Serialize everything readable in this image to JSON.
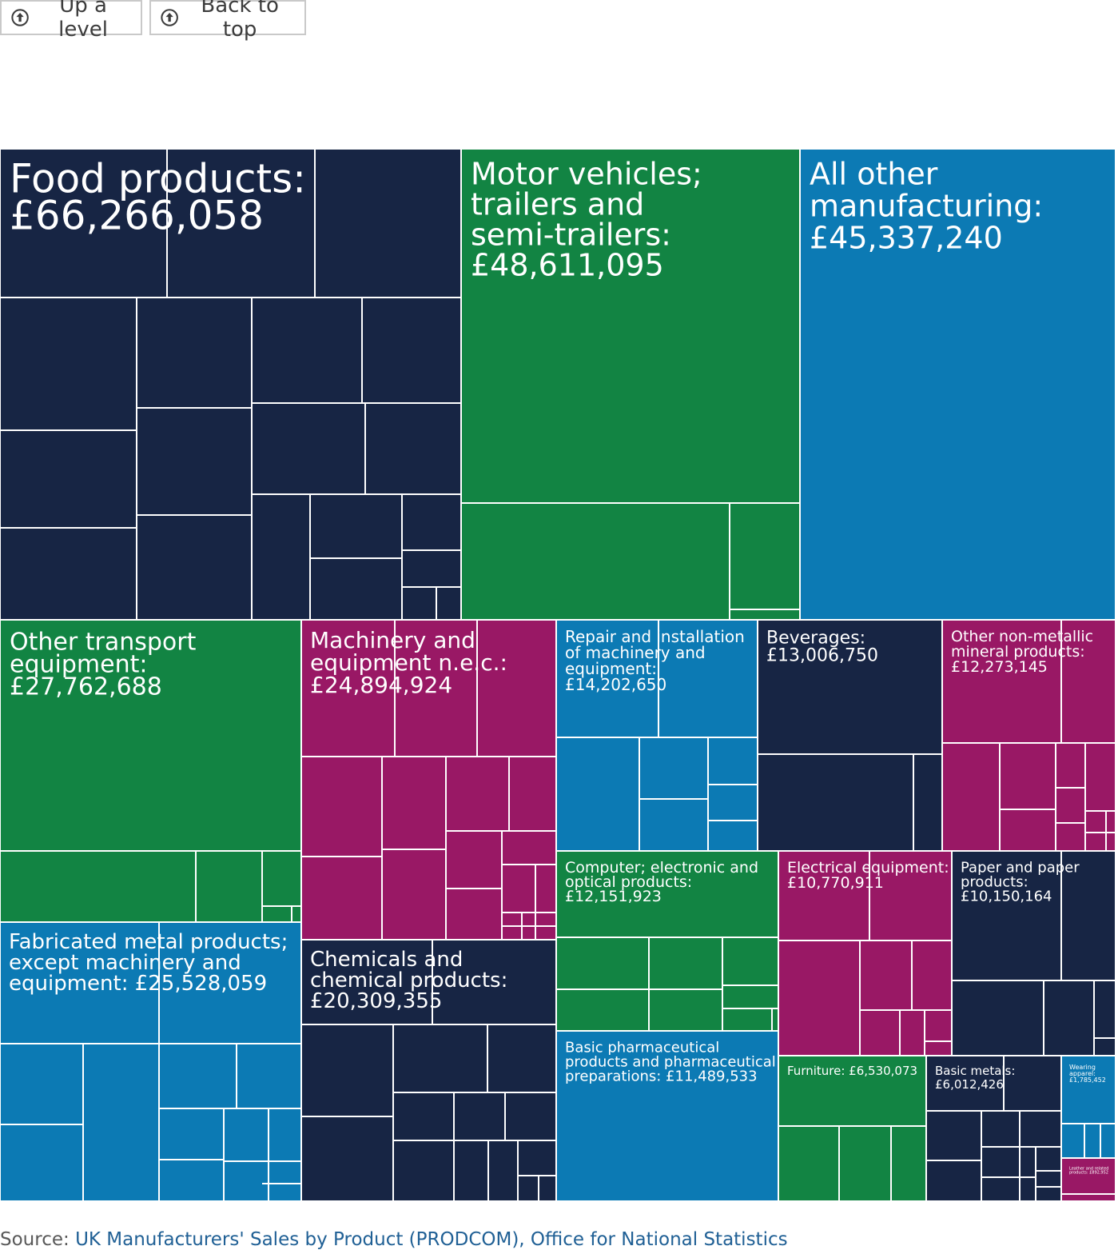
{
  "nav": {
    "up_label": "Up a level",
    "top_label": "Back to top"
  },
  "source": {
    "prefix": "Source: ",
    "link_text": "UK Manufacturers' Sales by Product (PRODCOM), Office for National Statistics"
  },
  "colors": {
    "navy": "#172544",
    "green": "#128443",
    "blue": "#0c7ab4",
    "purple": "#991865"
  },
  "chart_data": {
    "type": "treemap",
    "unit": "£",
    "items": [
      {
        "label": "Food products:",
        "value_text": "£66,266,058",
        "value": 66266058,
        "color": "navy"
      },
      {
        "label": "Motor vehicles; trailers and semi-trailers:",
        "value_text": "£48,611,095",
        "value": 48611095,
        "color": "green"
      },
      {
        "label": "All other manufacturing:",
        "value_text": "£45,337,240",
        "value": 45337240,
        "color": "blue"
      },
      {
        "label": "Other transport equipment:",
        "value_text": "£27,762,688",
        "value": 27762688,
        "color": "green"
      },
      {
        "label": "Fabricated metal products; except machinery and equipment:",
        "value_text": "£25,528,059",
        "value": 25528059,
        "color": "blue"
      },
      {
        "label": "Machinery and equipment n.e.c.:",
        "value_text": "£24,894,924",
        "value": 24894924,
        "color": "purple"
      },
      {
        "label": "Chemicals and chemical products:",
        "value_text": "£20,309,355",
        "value": 20309355,
        "color": "navy"
      },
      {
        "label": "Repair and installation of machinery and equipment:",
        "value_text": "£14,202,650",
        "value": 14202650,
        "color": "blue"
      },
      {
        "label": "Beverages:",
        "value_text": "£13,006,750",
        "value": 13006750,
        "color": "navy"
      },
      {
        "label": "Other non-metallic mineral products:",
        "value_text": "£12,273,145",
        "value": 12273145,
        "color": "purple"
      },
      {
        "label": "Computer; electronic and optical products:",
        "value_text": "£12,151,923",
        "value": 12151923,
        "color": "green"
      },
      {
        "label": "Basic pharmaceutical products and pharmaceutical preparations:",
        "value_text": "£11,489,533",
        "value": 11489533,
        "color": "blue"
      },
      {
        "label": "Electrical equipment:",
        "value_text": "£10,770,911",
        "value": 10770911,
        "color": "purple"
      },
      {
        "label": "Paper and paper products:",
        "value_text": "£10,150,164",
        "value": 10150164,
        "color": "navy"
      },
      {
        "label": "Furniture:",
        "value_text": "£6,530,073",
        "value": 6530073,
        "color": "green"
      },
      {
        "label": "Basic metals:",
        "value_text": "£6,012,426",
        "value": 6012426,
        "color": "navy"
      },
      {
        "label": "Wearing apparel:",
        "value_text": "£1,785,452",
        "value": 1785452,
        "color": "blue"
      },
      {
        "label": "Leather and related products:",
        "value_text": "£892,952",
        "value": 892952,
        "color": "purple"
      }
    ]
  }
}
